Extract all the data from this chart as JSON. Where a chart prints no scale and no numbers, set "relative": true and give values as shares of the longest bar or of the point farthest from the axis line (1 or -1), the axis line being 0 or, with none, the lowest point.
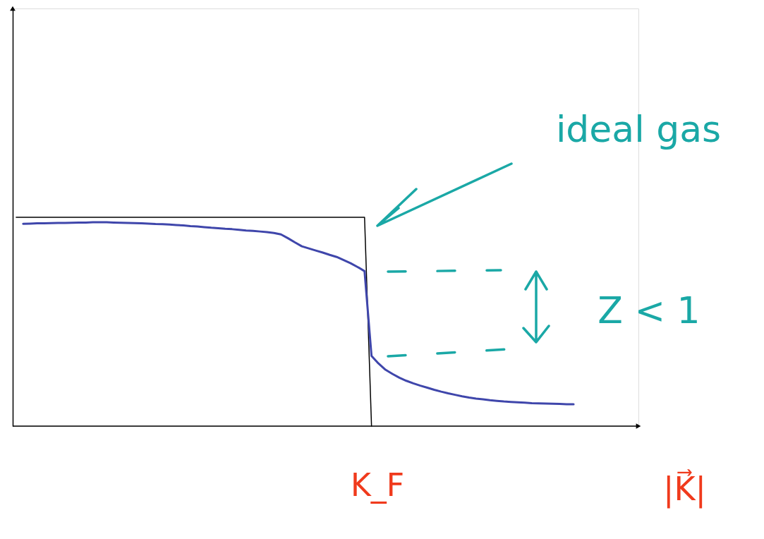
{
  "chart_data": {
    "type": "line",
    "relative": true,
    "xlabel": "|K⃗|",
    "categories": [
      null,
      null,
      null,
      null,
      null,
      null,
      null,
      null,
      null,
      null,
      null,
      null,
      null,
      null,
      null,
      null,
      null,
      null,
      null,
      null,
      null,
      null,
      null,
      null,
      null,
      null,
      null,
      null,
      null,
      null,
      null,
      null,
      null,
      null,
      null,
      null,
      null,
      null,
      null,
      null,
      null,
      null,
      null,
      null,
      null,
      null,
      null,
      null,
      null,
      null,
      null,
      null,
      null,
      null,
      null,
      null,
      null,
      null,
      null,
      null,
      null,
      null,
      null,
      null,
      null,
      null,
      null,
      null,
      null,
      null,
      null,
      null,
      null,
      null,
      null,
      null,
      null,
      null,
      null,
      null,
      null
    ],
    "series": [
      {
        "color": "#000000",
        "values": [
          1,
          1,
          1,
          1,
          1,
          1,
          1,
          1,
          1,
          1,
          1,
          1,
          1,
          1,
          1,
          1,
          1,
          1,
          1,
          1,
          1,
          1,
          1,
          1,
          1,
          1,
          1,
          1,
          1,
          1,
          1,
          1,
          1,
          1,
          1,
          1,
          1,
          1,
          1,
          1,
          1,
          1,
          1,
          1,
          1,
          1,
          1,
          1,
          1,
          1,
          1,
          0,
          null,
          null,
          null,
          null,
          null,
          null,
          null,
          null,
          null,
          null,
          null,
          null,
          null,
          null,
          null,
          null,
          null,
          null,
          null,
          null,
          null,
          null,
          null,
          null,
          null,
          null,
          null,
          null,
          null
        ]
      },
      {
        "color": "#3f46ab",
        "values": [
          null,
          0.969,
          0.97,
          0.971,
          0.971,
          0.972,
          0.973,
          0.973,
          0.974,
          0.975,
          0.975,
          0.976,
          0.976,
          0.976,
          0.975,
          0.974,
          0.973,
          0.972,
          0.971,
          0.97,
          0.968,
          0.967,
          0.965,
          0.963,
          0.961,
          0.958,
          0.956,
          0.953,
          0.95,
          0.948,
          0.945,
          0.943,
          0.94,
          0.937,
          0.935,
          0.932,
          0.929,
          0.925,
          0.918,
          0.9,
          0.88,
          0.861,
          0.851,
          0.841,
          0.831,
          0.82,
          0.81,
          0.795,
          0.78,
          0.762,
          0.742,
          0.336,
          0.3,
          0.27,
          0.25,
          0.232,
          0.217,
          0.205,
          0.194,
          0.184,
          0.174,
          0.165,
          0.157,
          0.15,
          0.143,
          0.137,
          0.132,
          0.128,
          0.124,
          0.121,
          0.118,
          0.116,
          0.114,
          0.112,
          0.11,
          0.109,
          0.108,
          0.107,
          0.106,
          0.105,
          0.105
        ]
      }
    ],
    "annotations": [
      "ideal gas",
      "Z < 1",
      "K_F"
    ],
    "marker": "none",
    "line_style": "solid"
  }
}
